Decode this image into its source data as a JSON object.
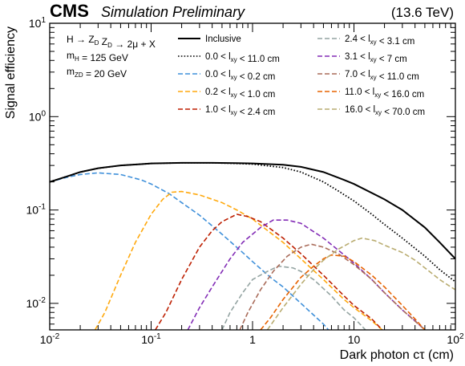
{
  "header": {
    "experiment": "CMS",
    "status": "Simulation Preliminary",
    "energy": "(13.6 TeV)"
  },
  "process_labels": [
    "H → Z_D Z_D → 2μ + X",
    "m_H = 125 GeV",
    "m_{Z_D} = 20 GeV"
  ],
  "chart_data": {
    "type": "line",
    "title": "",
    "xlabel": "Dark photon cτ (cm)",
    "ylabel": "Signal efficiency",
    "xscale": "log",
    "yscale": "log",
    "xlim": [
      0.01,
      100
    ],
    "ylim": [
      0.0052,
      10
    ],
    "xticks": [
      {
        "value": 0.01,
        "label": "10^-2"
      },
      {
        "value": 0.1,
        "label": "10^-1"
      },
      {
        "value": 1,
        "label": "1"
      },
      {
        "value": 10,
        "label": "10"
      },
      {
        "value": 100,
        "label": "10^2"
      }
    ],
    "yticks": [
      {
        "value": 0.01,
        "label": "10^-2"
      },
      {
        "value": 0.1,
        "label": "10^-1"
      },
      {
        "value": 1,
        "label": "10^0"
      },
      {
        "value": 10,
        "label": "10^1"
      }
    ],
    "grid": false,
    "legend_position": "top",
    "series": [
      {
        "name": "Inclusive",
        "color": "#000000",
        "style": "solid",
        "points": [
          [
            0.01,
            0.2
          ],
          [
            0.015,
            0.23
          ],
          [
            0.02,
            0.255
          ],
          [
            0.03,
            0.28
          ],
          [
            0.05,
            0.3
          ],
          [
            0.08,
            0.31
          ],
          [
            0.1,
            0.315
          ],
          [
            0.2,
            0.32
          ],
          [
            0.4,
            0.32
          ],
          [
            0.7,
            0.318
          ],
          [
            1,
            0.315
          ],
          [
            2,
            0.305
          ],
          [
            3,
            0.29
          ],
          [
            5,
            0.255
          ],
          [
            8,
            0.21
          ],
          [
            10,
            0.19
          ],
          [
            20,
            0.13
          ],
          [
            30,
            0.1
          ],
          [
            50,
            0.065
          ],
          [
            70,
            0.045
          ],
          [
            100,
            0.03
          ]
        ]
      },
      {
        "name": "0.0 < l_xy < 11.0 cm",
        "color": "#000000",
        "style": "dotted",
        "points": [
          [
            0.01,
            0.2
          ],
          [
            0.015,
            0.23
          ],
          [
            0.02,
            0.255
          ],
          [
            0.03,
            0.28
          ],
          [
            0.05,
            0.3
          ],
          [
            0.08,
            0.31
          ],
          [
            0.1,
            0.315
          ],
          [
            0.2,
            0.32
          ],
          [
            0.4,
            0.32
          ],
          [
            0.7,
            0.315
          ],
          [
            1,
            0.31
          ],
          [
            2,
            0.285
          ],
          [
            3,
            0.255
          ],
          [
            5,
            0.2
          ],
          [
            7,
            0.16
          ],
          [
            10,
            0.125
          ],
          [
            15,
            0.09
          ],
          [
            20,
            0.07
          ],
          [
            30,
            0.05
          ],
          [
            50,
            0.032
          ],
          [
            70,
            0.023
          ],
          [
            100,
            0.017
          ]
        ]
      },
      {
        "name": "0.0 < l_xy < 0.2 cm",
        "color": "#3f90da",
        "style": "dashed",
        "points": [
          [
            0.01,
            0.2
          ],
          [
            0.015,
            0.225
          ],
          [
            0.02,
            0.24
          ],
          [
            0.03,
            0.25
          ],
          [
            0.05,
            0.24
          ],
          [
            0.08,
            0.21
          ],
          [
            0.1,
            0.19
          ],
          [
            0.15,
            0.15
          ],
          [
            0.2,
            0.12
          ],
          [
            0.3,
            0.088
          ],
          [
            0.5,
            0.055
          ],
          [
            0.8,
            0.035
          ],
          [
            1,
            0.028
          ],
          [
            1.5,
            0.019
          ],
          [
            2,
            0.015
          ],
          [
            3,
            0.01
          ],
          [
            4,
            0.0075
          ],
          [
            5,
            0.006
          ],
          [
            5.6,
            0.0052
          ]
        ]
      },
      {
        "name": "0.2 < l_xy < 1.0 cm",
        "color": "#ffa90e",
        "style": "dashed",
        "points": [
          [
            0.028,
            0.0052
          ],
          [
            0.035,
            0.008
          ],
          [
            0.05,
            0.02
          ],
          [
            0.07,
            0.045
          ],
          [
            0.1,
            0.09
          ],
          [
            0.13,
            0.13
          ],
          [
            0.16,
            0.155
          ],
          [
            0.2,
            0.158
          ],
          [
            0.3,
            0.145
          ],
          [
            0.5,
            0.12
          ],
          [
            0.7,
            0.1
          ],
          [
            1,
            0.08
          ],
          [
            2,
            0.045
          ],
          [
            3,
            0.03
          ],
          [
            5,
            0.018
          ],
          [
            8,
            0.011
          ],
          [
            10,
            0.009
          ],
          [
            15,
            0.0065
          ],
          [
            19,
            0.0052
          ]
        ]
      },
      {
        "name": "1.0 < l_xy < 2.4 cm",
        "color": "#bd1f01",
        "style": "dashed",
        "points": [
          [
            0.11,
            0.0052
          ],
          [
            0.14,
            0.008
          ],
          [
            0.2,
            0.018
          ],
          [
            0.3,
            0.04
          ],
          [
            0.4,
            0.06
          ],
          [
            0.5,
            0.075
          ],
          [
            0.7,
            0.09
          ],
          [
            0.9,
            0.085
          ],
          [
            1.2,
            0.075
          ],
          [
            2,
            0.05
          ],
          [
            3,
            0.034
          ],
          [
            5,
            0.02
          ],
          [
            8,
            0.012
          ],
          [
            10,
            0.0095
          ],
          [
            15,
            0.0068
          ],
          [
            19,
            0.0052
          ]
        ]
      },
      {
        "name": "2.4 < l_xy < 3.1 cm",
        "color": "#94a4a2",
        "style": "dashed",
        "points": [
          [
            0.5,
            0.0052
          ],
          [
            0.6,
            0.008
          ],
          [
            0.8,
            0.013
          ],
          [
            1,
            0.018
          ],
          [
            1.4,
            0.022
          ],
          [
            1.8,
            0.025
          ],
          [
            2.5,
            0.024
          ],
          [
            3,
            0.022
          ],
          [
            4,
            0.018
          ],
          [
            6,
            0.012
          ],
          [
            8,
            0.0085
          ],
          [
            10,
            0.007
          ],
          [
            13,
            0.0052
          ]
        ]
      },
      {
        "name": "3.1 < l_xy < 7 cm",
        "color": "#832db6",
        "style": "dashed",
        "points": [
          [
            0.23,
            0.0052
          ],
          [
            0.3,
            0.009
          ],
          [
            0.4,
            0.015
          ],
          [
            0.6,
            0.03
          ],
          [
            0.8,
            0.045
          ],
          [
            1.2,
            0.065
          ],
          [
            1.6,
            0.078
          ],
          [
            2.2,
            0.078
          ],
          [
            3,
            0.072
          ],
          [
            5,
            0.05
          ],
          [
            8,
            0.033
          ],
          [
            10,
            0.027
          ],
          [
            15,
            0.018
          ],
          [
            20,
            0.013
          ],
          [
            30,
            0.0085
          ],
          [
            40,
            0.0065
          ],
          [
            50,
            0.0052
          ]
        ]
      },
      {
        "name": "7.0 < l_xy < 11.0 cm",
        "color": "#a96b59",
        "style": "dashed",
        "points": [
          [
            0.75,
            0.0052
          ],
          [
            0.9,
            0.008
          ],
          [
            1.2,
            0.014
          ],
          [
            1.6,
            0.022
          ],
          [
            2.2,
            0.032
          ],
          [
            3,
            0.04
          ],
          [
            3.8,
            0.043
          ],
          [
            5,
            0.04
          ],
          [
            7,
            0.034
          ],
          [
            10,
            0.026
          ],
          [
            15,
            0.018
          ],
          [
            20,
            0.013
          ],
          [
            30,
            0.0085
          ],
          [
            50,
            0.0052
          ]
        ]
      },
      {
        "name": "11.0 < l_xy < 16.0 cm",
        "color": "#e76300",
        "style": "dashed",
        "points": [
          [
            1.2,
            0.0052
          ],
          [
            1.5,
            0.007
          ],
          [
            2,
            0.011
          ],
          [
            3,
            0.019
          ],
          [
            4,
            0.025
          ],
          [
            5,
            0.03
          ],
          [
            6,
            0.033
          ],
          [
            8,
            0.032
          ],
          [
            10,
            0.028
          ],
          [
            15,
            0.02
          ],
          [
            20,
            0.015
          ],
          [
            30,
            0.0095
          ],
          [
            40,
            0.0068
          ],
          [
            50,
            0.0052
          ]
        ]
      },
      {
        "name": "16.0 < l_xy < 70.0 cm",
        "color": "#b9ac70",
        "style": "dashed",
        "points": [
          [
            1.4,
            0.0052
          ],
          [
            2,
            0.009
          ],
          [
            3,
            0.016
          ],
          [
            4,
            0.023
          ],
          [
            5,
            0.029
          ],
          [
            7,
            0.038
          ],
          [
            10,
            0.047
          ],
          [
            12,
            0.05
          ],
          [
            16,
            0.047
          ],
          [
            20,
            0.042
          ],
          [
            30,
            0.035
          ],
          [
            40,
            0.029
          ],
          [
            50,
            0.024
          ],
          [
            70,
            0.018
          ],
          [
            90,
            0.015
          ],
          [
            100,
            0.014
          ]
        ]
      }
    ]
  }
}
